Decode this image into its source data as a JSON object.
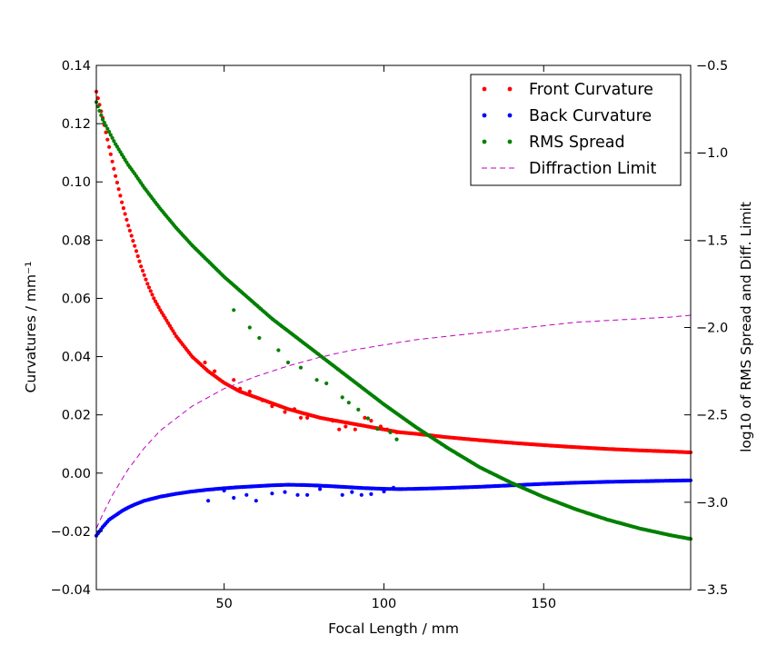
{
  "chart_data": {
    "type": "scatter",
    "xlabel": "Focal Length / mm",
    "ylabel": "Curvatures / mm⁻¹",
    "ylabel_right": "log10 of RMS Spread and Diff. Limit",
    "xlim": [
      10,
      196
    ],
    "ylim": [
      -0.04,
      0.14
    ],
    "ylim_right": [
      -3.5,
      -0.5
    ],
    "xticks": [
      50,
      100,
      150
    ],
    "yticks": [
      -0.04,
      -0.02,
      0.0,
      0.02,
      0.04,
      0.06,
      0.08,
      0.1,
      0.12,
      0.14
    ],
    "yticks_right": [
      -3.5,
      -3.0,
      -2.5,
      -2.0,
      -1.5,
      -1.0,
      -0.5
    ],
    "ytick_labels": [
      "−0.04",
      "−0.02",
      "0.00",
      "0.02",
      "0.04",
      "0.06",
      "0.08",
      "0.10",
      "0.12",
      "0.14"
    ],
    "ytick_labels_right": [
      "−3.5",
      "−3.0",
      "−2.5",
      "−2.0",
      "−1.5",
      "−1.0",
      "−0.5"
    ],
    "legend_position": "top-right",
    "grid": false,
    "series": [
      {
        "name": "Front Curvature",
        "axis": "left",
        "style": "dots",
        "color": "#ff0000",
        "x": [
          10,
          12,
          14,
          16,
          18,
          20,
          22,
          24,
          26,
          28,
          30,
          35,
          40,
          45,
          50,
          55,
          60,
          65,
          70,
          75,
          80,
          85,
          90,
          95,
          100,
          105,
          110,
          120,
          130,
          140,
          150,
          160,
          170,
          180,
          190,
          196
        ],
        "values": [
          0.131,
          0.122,
          0.112,
          0.102,
          0.093,
          0.085,
          0.078,
          0.071,
          0.065,
          0.06,
          0.056,
          0.047,
          0.04,
          0.035,
          0.031,
          0.028,
          0.026,
          0.024,
          0.022,
          0.0205,
          0.019,
          0.018,
          0.017,
          0.016,
          0.015,
          0.014,
          0.0135,
          0.0123,
          0.0113,
          0.0104,
          0.0096,
          0.0089,
          0.0083,
          0.0078,
          0.0074,
          0.0071
        ],
        "outliers": {
          "x": [
            44,
            47,
            53,
            55,
            58,
            62,
            65,
            69,
            72,
            74,
            76,
            84,
            86,
            88,
            91,
            94,
            96,
            99,
            101,
            104
          ],
          "values": [
            0.038,
            0.035,
            0.032,
            0.029,
            0.028,
            0.025,
            0.023,
            0.021,
            0.022,
            0.019,
            0.019,
            0.018,
            0.015,
            0.016,
            0.015,
            0.019,
            0.018,
            0.016,
            0.015,
            0.014
          ]
        }
      },
      {
        "name": "Back Curvature",
        "axis": "left",
        "style": "dots",
        "color": "#0000ff",
        "x": [
          10,
          12,
          14,
          16,
          18,
          20,
          22,
          25,
          30,
          35,
          40,
          45,
          50,
          55,
          60,
          65,
          70,
          75,
          80,
          85,
          90,
          95,
          100,
          105,
          110,
          120,
          130,
          140,
          150,
          160,
          170,
          180,
          190,
          196
        ],
        "values": [
          -0.0215,
          -0.0185,
          -0.016,
          -0.0145,
          -0.013,
          -0.0118,
          -0.0108,
          -0.0095,
          -0.0081,
          -0.0071,
          -0.0063,
          -0.0057,
          -0.0052,
          -0.0048,
          -0.0045,
          -0.0042,
          -0.004,
          -0.0041,
          -0.0043,
          -0.0046,
          -0.0049,
          -0.0052,
          -0.0054,
          -0.0055,
          -0.0054,
          -0.0051,
          -0.0047,
          -0.0042,
          -0.0037,
          -0.0033,
          -0.003,
          -0.0028,
          -0.0026,
          -0.0025
        ],
        "outliers": {
          "x": [
            45,
            50,
            53,
            57,
            60,
            65,
            69,
            73,
            76,
            80,
            87,
            90,
            93,
            96,
            100,
            103
          ],
          "values": [
            -0.0095,
            -0.006,
            -0.0085,
            -0.0075,
            -0.0095,
            -0.007,
            -0.0065,
            -0.0075,
            -0.0075,
            -0.0055,
            -0.0075,
            -0.0065,
            -0.0075,
            -0.0072,
            -0.0063,
            -0.005
          ]
        }
      },
      {
        "name": "RMS Spread",
        "axis": "right",
        "style": "dots",
        "color": "#008000",
        "x": [
          10,
          12,
          14,
          16,
          18,
          20,
          22,
          25,
          30,
          35,
          40,
          45,
          50,
          55,
          60,
          65,
          70,
          75,
          80,
          85,
          90,
          95,
          100,
          110,
          120,
          130,
          140,
          150,
          160,
          170,
          180,
          190,
          196
        ],
        "values": [
          -0.71,
          -0.81,
          -0.88,
          -0.95,
          -1.01,
          -1.07,
          -1.12,
          -1.2,
          -1.32,
          -1.43,
          -1.53,
          -1.62,
          -1.71,
          -1.79,
          -1.87,
          -1.95,
          -2.02,
          -2.09,
          -2.16,
          -2.23,
          -2.3,
          -2.37,
          -2.44,
          -2.57,
          -2.69,
          -2.8,
          -2.89,
          -2.97,
          -3.04,
          -3.1,
          -3.15,
          -3.19,
          -3.21
        ],
        "outliers": {
          "x": [
            53,
            58,
            61,
            67,
            70,
            74,
            79,
            82,
            87,
            89,
            92,
            95,
            98,
            102,
            104
          ],
          "values": [
            -1.9,
            -2.0,
            -2.06,
            -2.13,
            -2.2,
            -2.23,
            -2.3,
            -2.32,
            -2.4,
            -2.43,
            -2.47,
            -2.52,
            -2.58,
            -2.6,
            -2.64
          ]
        }
      },
      {
        "name": "Diffraction Limit",
        "axis": "right",
        "style": "dashed",
        "color": "#bf00bf",
        "x": [
          10,
          12,
          15,
          20,
          25,
          30,
          40,
          50,
          60,
          70,
          80,
          90,
          100,
          110,
          120,
          130,
          140,
          150,
          160,
          170,
          180,
          190,
          196
        ],
        "values": [
          -3.15,
          -3.07,
          -2.96,
          -2.81,
          -2.69,
          -2.59,
          -2.45,
          -2.35,
          -2.28,
          -2.22,
          -2.17,
          -2.13,
          -2.1,
          -2.07,
          -2.05,
          -2.03,
          -2.01,
          -1.99,
          -1.97,
          -1.96,
          -1.95,
          -1.94,
          -1.93
        ]
      }
    ]
  }
}
